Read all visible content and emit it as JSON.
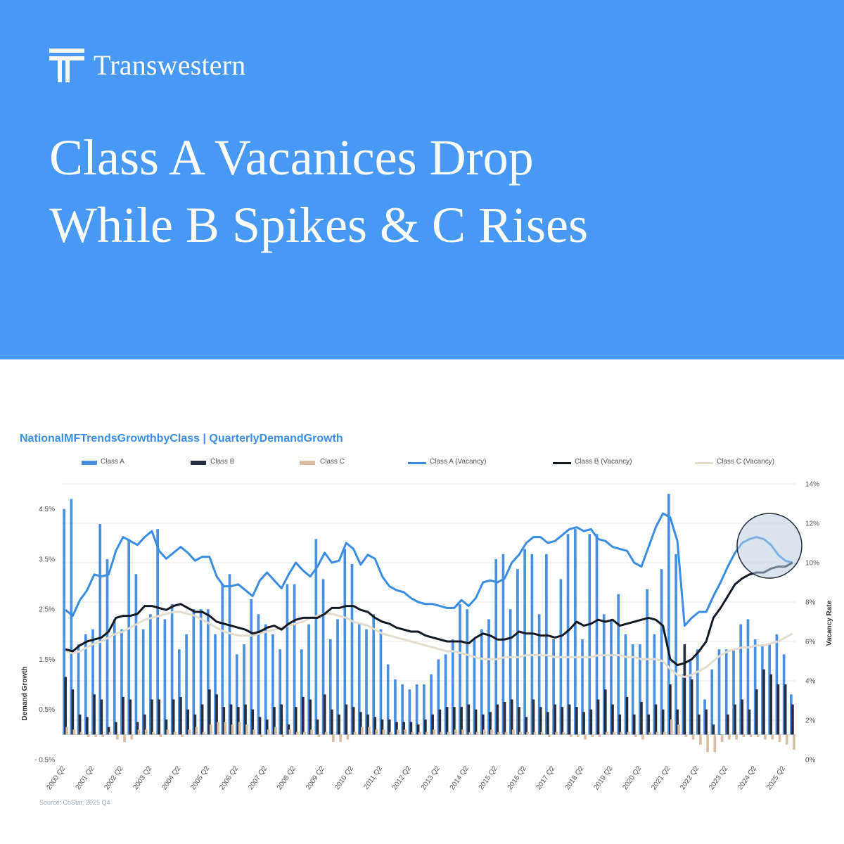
{
  "brand": {
    "name": "Transwestern",
    "logo_icon": "transwestern-t-icon"
  },
  "headline": {
    "line1": "Class A Vacanices Drop",
    "line2": "While B Spikes & C Rises"
  },
  "colors": {
    "hero": "#4799f4",
    "classA": "#4a90e2",
    "classB": "#262d3f",
    "classC": "#d9bda5",
    "classA_vac": "#3a8de0",
    "classB_vac": "#141a24",
    "classC_vac": "#e3ddd0",
    "highlight": "#b9cde0"
  },
  "chart_data": {
    "type": "bar",
    "title": "NationalMFTrendsGrowthbyClass | QuarterlyDemandGrowth",
    "ylabel": "Demand Growth",
    "y2label": "Vacancy Rate",
    "ylim": [
      -0.5,
      5.0
    ],
    "y2lim": [
      0,
      14
    ],
    "yticks": [
      "4.5%",
      "3.5%",
      "2.5%",
      "1.5%",
      "0.5%",
      "- 0.5%"
    ],
    "y2ticks": [
      "14%",
      "12%",
      "10%",
      "8%",
      "6%",
      "4%",
      "2%",
      "0%"
    ],
    "legend": [
      "Class A",
      "Class B",
      "Class C",
      "Class A (Vacancy)",
      "Class B (Vacancy)",
      "Class C (Vacancy)"
    ],
    "legend_position": "top",
    "grid": true,
    "xtick_labels": [
      "2000 Q2",
      "2001 Q2",
      "2002 Q2",
      "2003 Q2",
      "2004 Q2",
      "2005 Q2",
      "2006 Q2",
      "2007 Q2",
      "2008 Q2",
      "2009 Q2",
      "2010 Q2",
      "2011 Q2",
      "2012 Q2",
      "2013 Q2",
      "2014 Q2",
      "2015 Q2",
      "2016 Q2",
      "2017 Q2",
      "2018 Q2",
      "2019 Q2",
      "2020 Q2",
      "2021 Q2",
      "2022 Q2",
      "2023 Q2",
      "2024 Q2",
      "2025 Q2"
    ],
    "series": [
      {
        "name": "Class A",
        "kind": "bar",
        "axis": "left",
        "values": [
          4.5,
          4.7,
          1.8,
          2.0,
          2.1,
          4.2,
          3.5,
          2.3,
          2.1,
          3.9,
          3.2,
          2.1,
          2.4,
          4.1,
          2.3,
          2.6,
          1.7,
          2.0,
          2.5,
          2.5,
          2.5,
          2.0,
          3.0,
          3.2,
          1.6,
          1.8,
          2.7,
          2.4,
          2.2,
          2.0,
          1.7,
          3.0,
          3.0,
          1.7,
          2.2,
          3.9,
          3.1,
          1.9,
          2.3,
          3.7,
          3.4,
          2.2,
          2.1,
          2.4,
          2.1,
          1.4,
          1.1,
          1.0,
          0.9,
          1.0,
          1.0,
          1.2,
          1.5,
          1.6,
          1.9,
          2.6,
          2.5,
          1.9,
          2.1,
          2.3,
          3.5,
          3.6,
          2.5,
          3.3,
          3.7,
          3.6,
          2.4,
          3.6,
          1.9,
          3.1,
          4.0,
          4.1,
          1.9,
          4.0,
          4.0,
          2.4,
          2.3,
          2.8,
          2.0,
          1.8,
          1.8,
          2.9,
          2.0,
          3.3,
          4.8,
          3.6,
          1.2,
          1.5,
          1.7,
          0.7,
          1.3,
          1.7,
          1.7,
          1.7,
          2.2,
          2.3,
          1.9,
          1.8,
          1.8,
          2.0,
          1.6,
          0.8
        ]
      },
      {
        "name": "Class B",
        "kind": "bar",
        "axis": "left",
        "values": [
          1.15,
          0.9,
          0.4,
          0.35,
          0.8,
          0.7,
          0.15,
          0.25,
          0.75,
          0.7,
          0.25,
          0.4,
          0.7,
          0.7,
          0.3,
          0.7,
          0.75,
          0.5,
          0.4,
          0.6,
          0.9,
          0.8,
          0.55,
          0.6,
          0.55,
          0.6,
          0.5,
          0.35,
          0.3,
          0.55,
          0.6,
          0.2,
          0.55,
          0.75,
          0.7,
          0.3,
          0.8,
          0.5,
          0.4,
          0.6,
          0.55,
          0.45,
          0.4,
          0.35,
          0.3,
          0.3,
          0.25,
          0.25,
          0.25,
          0.2,
          0.3,
          0.4,
          0.5,
          0.55,
          0.55,
          0.55,
          0.6,
          0.5,
          0.4,
          0.45,
          0.6,
          0.65,
          0.7,
          0.55,
          0.35,
          0.7,
          0.55,
          0.45,
          0.6,
          0.55,
          0.6,
          0.55,
          0.45,
          0.5,
          0.7,
          0.9,
          0.6,
          0.4,
          0.75,
          0.4,
          0.65,
          0.4,
          0.6,
          0.5,
          1.0,
          0.5,
          1.8,
          1.1,
          0.4,
          0.5,
          0.2,
          0.0,
          0.4,
          0.6,
          0.7,
          0.5,
          0.9,
          1.3,
          1.2,
          1.0,
          1.0,
          0.6
        ]
      },
      {
        "name": "Class C",
        "kind": "bar",
        "axis": "left",
        "values": [
          0.15,
          0.1,
          0.05,
          -0.05,
          -0.05,
          -0.05,
          0.05,
          -0.1,
          -0.15,
          -0.1,
          0.1,
          0.1,
          0.05,
          -0.05,
          0.1,
          0.05,
          -0.05,
          0.1,
          0.15,
          0.05,
          0.2,
          0.25,
          0.25,
          0.2,
          0.25,
          0.2,
          0.1,
          -0.05,
          0.1,
          0.15,
          -0.05,
          0.1,
          0.05,
          0.05,
          0.1,
          -0.05,
          0.05,
          -0.15,
          -0.15,
          -0.1,
          0.05,
          0.15,
          0.15,
          0.1,
          0.1,
          0.05,
          0.1,
          0.1,
          0.05,
          0.05,
          0.05,
          0.1,
          0.05,
          0.05,
          0.1,
          0.1,
          0.05,
          0.05,
          0.1,
          0.1,
          0.05,
          0.05,
          0.1,
          0.05,
          0.05,
          0.05,
          0.05,
          -0.05,
          0.05,
          0.05,
          -0.05,
          -0.05,
          -0.1,
          -0.05,
          -0.05,
          0.05,
          0.05,
          0.05,
          0.05,
          -0.05,
          -0.1,
          0.05,
          0.05,
          0.05,
          0.3,
          0.2,
          -0.05,
          -0.1,
          -0.2,
          -0.35,
          -0.35,
          -0.15,
          -0.1,
          -0.1,
          -0.05,
          -0.05,
          -0.05,
          -0.1,
          -0.1,
          -0.15,
          -0.2,
          -0.3
        ]
      },
      {
        "name": "Class A (Vacancy)",
        "kind": "line",
        "axis": "right",
        "values": [
          7.6,
          7.3,
          8.1,
          8.6,
          9.4,
          9.3,
          9.4,
          10.6,
          11.3,
          11.1,
          10.9,
          11.3,
          11.6,
          10.6,
          10.2,
          10.5,
          10.8,
          10.5,
          10.1,
          10.3,
          10.3,
          9.3,
          8.8,
          8.8,
          8.9,
          8.6,
          8.3,
          9.1,
          9.5,
          9.1,
          8.7,
          9.4,
          10.0,
          9.6,
          9.3,
          9.8,
          10.5,
          10.0,
          10.1,
          11.0,
          10.7,
          9.9,
          10.4,
          10.2,
          9.3,
          8.8,
          8.6,
          8.5,
          8.2,
          8.0,
          7.9,
          7.9,
          7.8,
          7.7,
          7.7,
          8.1,
          7.8,
          8.2,
          9.0,
          9.1,
          9.0,
          9.2,
          10.0,
          10.4,
          11.0,
          11.3,
          11.3,
          11.0,
          11.1,
          11.4,
          11.7,
          11.8,
          11.6,
          11.7,
          11.2,
          11.1,
          10.8,
          10.7,
          10.6,
          10.0,
          9.8,
          10.8,
          11.8,
          12.5,
          12.3,
          11.1,
          6.8,
          7.2,
          7.5,
          7.5,
          8.3,
          9.0,
          9.8,
          10.5,
          11.0,
          11.2,
          11.3,
          11.2,
          10.9,
          10.4,
          10.1,
          10.0
        ]
      },
      {
        "name": "Class B (Vacancy)",
        "kind": "line",
        "axis": "right",
        "values": [
          5.6,
          5.5,
          5.8,
          6.0,
          6.1,
          6.2,
          6.5,
          7.2,
          7.3,
          7.3,
          7.4,
          7.8,
          7.8,
          7.7,
          7.6,
          7.8,
          7.9,
          7.7,
          7.5,
          7.5,
          7.3,
          7.0,
          6.9,
          6.8,
          6.7,
          6.6,
          6.4,
          6.5,
          6.7,
          6.8,
          6.6,
          6.9,
          7.1,
          7.2,
          7.2,
          7.2,
          7.4,
          7.7,
          7.7,
          7.8,
          7.8,
          7.6,
          7.5,
          7.2,
          7.0,
          6.9,
          6.7,
          6.6,
          6.5,
          6.5,
          6.3,
          6.2,
          6.1,
          6.0,
          6.0,
          6.0,
          5.9,
          6.2,
          6.4,
          6.3,
          6.1,
          6.1,
          6.2,
          6.5,
          6.4,
          6.4,
          6.3,
          6.3,
          6.2,
          6.3,
          6.6,
          7.0,
          6.8,
          6.9,
          7.1,
          7.0,
          7.1,
          6.8,
          6.9,
          7.0,
          7.1,
          7.2,
          7.1,
          6.8,
          5.1,
          4.8,
          4.9,
          5.1,
          5.5,
          6.0,
          7.2,
          7.7,
          8.3,
          8.9,
          9.2,
          9.4,
          9.5,
          9.5,
          9.7,
          9.8,
          9.8,
          10.0
        ]
      },
      {
        "name": "Class C (Vacancy)",
        "kind": "line",
        "axis": "right",
        "values": [
          5.5,
          5.4,
          5.5,
          5.7,
          5.9,
          6.0,
          6.2,
          6.4,
          6.5,
          6.7,
          6.9,
          7.1,
          7.2,
          7.3,
          7.4,
          7.5,
          7.5,
          7.4,
          7.3,
          7.1,
          6.9,
          6.7,
          6.5,
          6.4,
          6.3,
          6.3,
          6.3,
          6.4,
          6.5,
          6.6,
          6.7,
          6.8,
          6.9,
          7.0,
          7.2,
          7.3,
          7.4,
          7.4,
          7.3,
          7.2,
          7.0,
          6.9,
          6.8,
          6.6,
          6.4,
          6.3,
          6.2,
          6.1,
          6.0,
          5.9,
          5.8,
          5.7,
          5.6,
          5.5,
          5.5,
          5.4,
          5.3,
          5.2,
          5.1,
          5.1,
          5.1,
          5.2,
          5.2,
          5.2,
          5.3,
          5.3,
          5.3,
          5.3,
          5.2,
          5.2,
          5.2,
          5.2,
          5.2,
          5.2,
          5.3,
          5.3,
          5.3,
          5.3,
          5.2,
          5.2,
          5.1,
          5.1,
          5.1,
          5.0,
          4.6,
          4.3,
          4.2,
          4.3,
          4.5,
          4.7,
          5.0,
          5.3,
          5.5,
          5.6,
          5.7,
          5.7,
          5.8,
          5.8,
          5.9,
          6.0,
          6.2,
          6.4
        ]
      }
    ]
  },
  "source": "Source: CoStar, 2025 Q4"
}
